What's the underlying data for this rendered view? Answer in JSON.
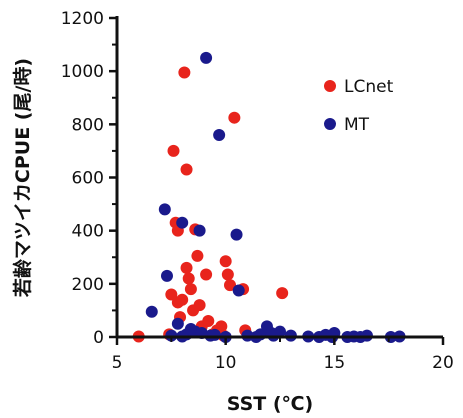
{
  "chart_data": {
    "type": "scatter",
    "title": "",
    "xlabel": "SST (℃)",
    "ylabel": "若齢マツイカCPUE (尾/時)",
    "xlim": [
      5,
      20
    ],
    "ylim": [
      0,
      1200
    ],
    "xticks": [
      5,
      10,
      15,
      20
    ],
    "yticks": [
      0,
      200,
      400,
      600,
      800,
      1000,
      1200
    ],
    "grid": false,
    "legend_position": "top-right",
    "series": [
      {
        "name": "LCnet",
        "color": "#e8241c",
        "points": [
          [
            6.0,
            2
          ],
          [
            7.5,
            160
          ],
          [
            7.6,
            700
          ],
          [
            7.7,
            430
          ],
          [
            7.8,
            400
          ],
          [
            7.8,
            130
          ],
          [
            7.9,
            75
          ],
          [
            8.0,
            140
          ],
          [
            8.1,
            995
          ],
          [
            8.2,
            630
          ],
          [
            8.2,
            260
          ],
          [
            8.3,
            220
          ],
          [
            8.4,
            180
          ],
          [
            8.5,
            100
          ],
          [
            8.6,
            405
          ],
          [
            8.7,
            305
          ],
          [
            8.8,
            120
          ],
          [
            8.9,
            40
          ],
          [
            9.1,
            235
          ],
          [
            9.2,
            60
          ],
          [
            9.4,
            10
          ],
          [
            9.6,
            25
          ],
          [
            9.8,
            40
          ],
          [
            10.0,
            285
          ],
          [
            10.1,
            235
          ],
          [
            10.2,
            195
          ],
          [
            10.4,
            825
          ],
          [
            10.8,
            180
          ],
          [
            10.9,
            25
          ],
          [
            12.6,
            165
          ],
          [
            7.4,
            10
          ],
          [
            8.5,
            20
          ],
          [
            9.9,
            5
          ]
        ]
      },
      {
        "name": "MT",
        "color": "#1a1a8c",
        "points": [
          [
            6.6,
            95
          ],
          [
            7.2,
            480
          ],
          [
            7.3,
            230
          ],
          [
            7.8,
            50
          ],
          [
            8.0,
            430
          ],
          [
            8.2,
            10
          ],
          [
            8.6,
            20
          ],
          [
            8.8,
            400
          ],
          [
            9.1,
            1050
          ],
          [
            9.3,
            5
          ],
          [
            9.7,
            760
          ],
          [
            10.5,
            385
          ],
          [
            10.6,
            175
          ],
          [
            7.5,
            5
          ],
          [
            8.0,
            2
          ],
          [
            8.4,
            30
          ],
          [
            8.9,
            15
          ],
          [
            9.5,
            8
          ],
          [
            10.0,
            0
          ],
          [
            11.0,
            5
          ],
          [
            11.6,
            10
          ],
          [
            11.9,
            40
          ],
          [
            12.2,
            5
          ],
          [
            12.5,
            20
          ],
          [
            13.0,
            5
          ],
          [
            13.8,
            2
          ],
          [
            14.3,
            0
          ],
          [
            14.6,
            8
          ],
          [
            15.0,
            15
          ],
          [
            15.6,
            0
          ],
          [
            15.9,
            2
          ],
          [
            16.2,
            0
          ],
          [
            16.5,
            5
          ],
          [
            17.6,
            0
          ],
          [
            18.0,
            2
          ],
          [
            12.1,
            15
          ],
          [
            11.4,
            0
          ],
          [
            14.9,
            0
          ]
        ]
      }
    ]
  }
}
